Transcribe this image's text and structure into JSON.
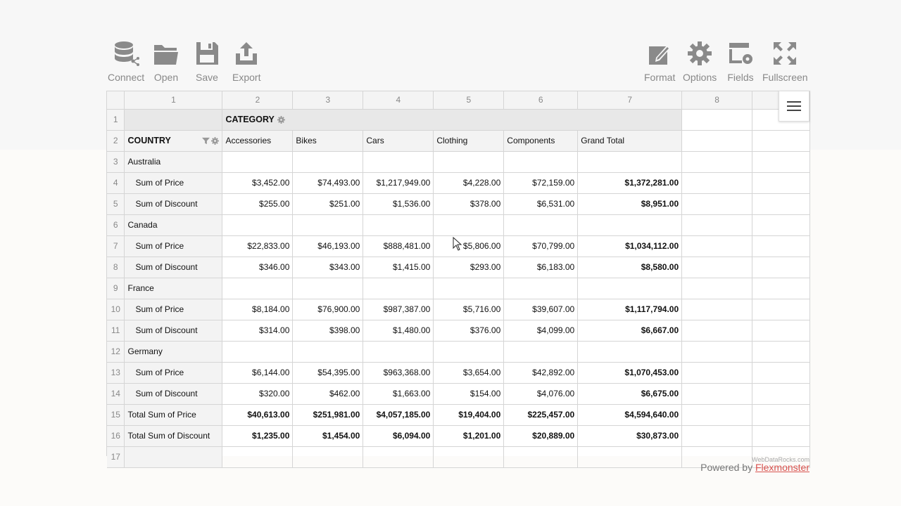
{
  "toolbar": {
    "connect": "Connect",
    "open": "Open",
    "save": "Save",
    "export": "Export",
    "format": "Format",
    "options": "Options",
    "fields": "Fields",
    "fullscreen": "Fullscreen"
  },
  "columns": [
    "1",
    "2",
    "3",
    "4",
    "5",
    "6",
    "7",
    "8",
    ""
  ],
  "row_numbers": [
    "1",
    "2",
    "3",
    "4",
    "5",
    "6",
    "7",
    "8",
    "9",
    "10",
    "11",
    "12",
    "13",
    "14",
    "15",
    "16",
    "17"
  ],
  "pivot": {
    "category_label": "CATEGORY",
    "country_label": "COUNTRY",
    "headers": [
      "Accessories",
      "Bikes",
      "Cars",
      "Clothing",
      "Components",
      "Grand Total"
    ],
    "rows": [
      {
        "label": "Australia",
        "type": "group",
        "values": []
      },
      {
        "label": "Sum of Price",
        "type": "measure",
        "values": [
          "$3,452.00",
          "$74,493.00",
          "$1,217,949.00",
          "$4,228.00",
          "$72,159.00",
          "$1,372,281.00"
        ]
      },
      {
        "label": "Sum of Discount",
        "type": "measure",
        "values": [
          "$255.00",
          "$251.00",
          "$1,536.00",
          "$378.00",
          "$6,531.00",
          "$8,951.00"
        ]
      },
      {
        "label": "Canada",
        "type": "group",
        "values": []
      },
      {
        "label": "Sum of Price",
        "type": "measure",
        "values": [
          "$22,833.00",
          "$46,193.00",
          "$888,481.00",
          "$5,806.00",
          "$70,799.00",
          "$1,034,112.00"
        ]
      },
      {
        "label": "Sum of Discount",
        "type": "measure",
        "values": [
          "$346.00",
          "$343.00",
          "$1,415.00",
          "$293.00",
          "$6,183.00",
          "$8,580.00"
        ]
      },
      {
        "label": "France",
        "type": "group",
        "values": []
      },
      {
        "label": "Sum of Price",
        "type": "measure",
        "values": [
          "$8,184.00",
          "$76,900.00",
          "$987,387.00",
          "$5,716.00",
          "$39,607.00",
          "$1,117,794.00"
        ]
      },
      {
        "label": "Sum of Discount",
        "type": "measure",
        "values": [
          "$314.00",
          "$398.00",
          "$1,480.00",
          "$376.00",
          "$4,099.00",
          "$6,667.00"
        ]
      },
      {
        "label": "Germany",
        "type": "group",
        "values": []
      },
      {
        "label": "Sum of Price",
        "type": "measure",
        "values": [
          "$6,144.00",
          "$54,395.00",
          "$963,368.00",
          "$3,654.00",
          "$42,892.00",
          "$1,070,453.00"
        ]
      },
      {
        "label": "Sum of Discount",
        "type": "measure",
        "values": [
          "$320.00",
          "$462.00",
          "$1,663.00",
          "$154.00",
          "$4,076.00",
          "$6,675.00"
        ]
      },
      {
        "label": "Total Sum of Price",
        "type": "total",
        "values": [
          "$40,613.00",
          "$251,981.00",
          "$4,057,185.00",
          "$19,404.00",
          "$225,457.00",
          "$4,594,640.00"
        ]
      },
      {
        "label": "Total Sum of Discount",
        "type": "total",
        "values": [
          "$1,235.00",
          "$1,454.00",
          "$6,094.00",
          "$1,201.00",
          "$20,889.00",
          "$30,873.00"
        ]
      }
    ]
  },
  "footer": {
    "watermark": "WebDataRocks.com",
    "powered_by": "Powered by",
    "brand": "Flexmonster"
  },
  "colors": {
    "toolbar_icon": "#8a8a8a",
    "link": "#d9534f"
  }
}
